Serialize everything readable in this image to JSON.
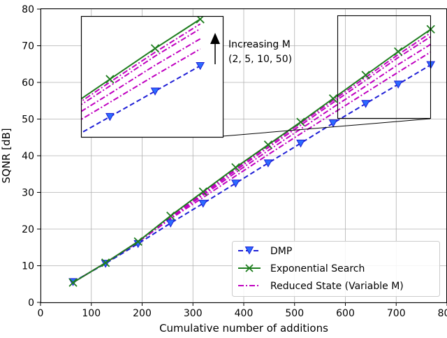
{
  "chart_data": {
    "type": "line",
    "xlabel": "Cumulative number of additions",
    "ylabel": "SQNR [dB]",
    "xlim": [
      0,
      800
    ],
    "ylim": [
      0,
      80
    ],
    "xticks": [
      0,
      100,
      200,
      300,
      400,
      500,
      600,
      700,
      800
    ],
    "yticks": [
      0,
      10,
      20,
      30,
      40,
      50,
      60,
      70,
      80
    ],
    "grid": true,
    "legend_position": "lower-right",
    "series": [
      {
        "name": "DMP",
        "color": "#1f1fd6",
        "linestyle": "dashed",
        "marker": "triangle-down",
        "x": [
          64,
          128,
          192,
          256,
          320,
          384,
          448,
          512,
          576,
          640,
          704,
          768
        ],
        "y": [
          5.6,
          10.6,
          16.0,
          21.6,
          27.0,
          32.5,
          38.0,
          43.4,
          48.9,
          54.2,
          59.5,
          64.8
        ]
      },
      {
        "name": "Exponential Search",
        "color": "#1e7d1e",
        "linestyle": "solid",
        "marker": "x",
        "x": [
          64,
          128,
          192,
          256,
          320,
          384,
          448,
          512,
          576,
          640,
          704,
          768
        ],
        "y": [
          5.4,
          10.8,
          16.6,
          23.6,
          30.2,
          36.8,
          43.0,
          49.2,
          55.6,
          62.0,
          68.4,
          74.5
        ]
      },
      {
        "name": "Reduced State (Variable M)",
        "color": "#c000c0",
        "linestyle": "dashdot",
        "marker": "none",
        "x": [
          64,
          128,
          192,
          256,
          320,
          384,
          448,
          512,
          576,
          640,
          704,
          768
        ],
        "y": [
          5.5,
          10.7,
          16.4,
          22.8,
          28.6,
          34.5,
          40.3,
          46.0,
          51.6,
          57.2,
          62.8,
          68.3
        ]
      },
      {
        "name": "",
        "color": "#c000c0",
        "linestyle": "dashdot",
        "marker": "none",
        "x": [
          64,
          128,
          192,
          256,
          320,
          384,
          448,
          512,
          576,
          640,
          704,
          768
        ],
        "y": [
          5.5,
          10.7,
          16.5,
          23.1,
          29.2,
          35.4,
          41.4,
          47.3,
          53.2,
          59.0,
          64.9,
          70.4
        ]
      },
      {
        "name": "",
        "color": "#c000c0",
        "linestyle": "dashdot",
        "marker": "none",
        "x": [
          64,
          128,
          192,
          256,
          320,
          384,
          448,
          512,
          576,
          640,
          704,
          768
        ],
        "y": [
          5.4,
          10.8,
          16.5,
          23.3,
          29.6,
          36.0,
          42.2,
          48.3,
          54.5,
          60.6,
          66.8,
          72.5
        ]
      },
      {
        "name": "",
        "color": "#c000c0",
        "linestyle": "dashdot",
        "marker": "none",
        "x": [
          64,
          128,
          192,
          256,
          320,
          384,
          448,
          512,
          576,
          640,
          704,
          768
        ],
        "y": [
          5.4,
          10.8,
          16.6,
          23.5,
          30.0,
          36.5,
          42.7,
          48.9,
          55.1,
          61.4,
          67.6,
          73.5
        ]
      }
    ],
    "inset": {
      "xlim": [
        600,
        800
      ],
      "ylim": [
        50,
        75
      ],
      "annotation_line1": "Increasing M",
      "annotation_line2": "(2, 5, 10, 50)"
    }
  }
}
